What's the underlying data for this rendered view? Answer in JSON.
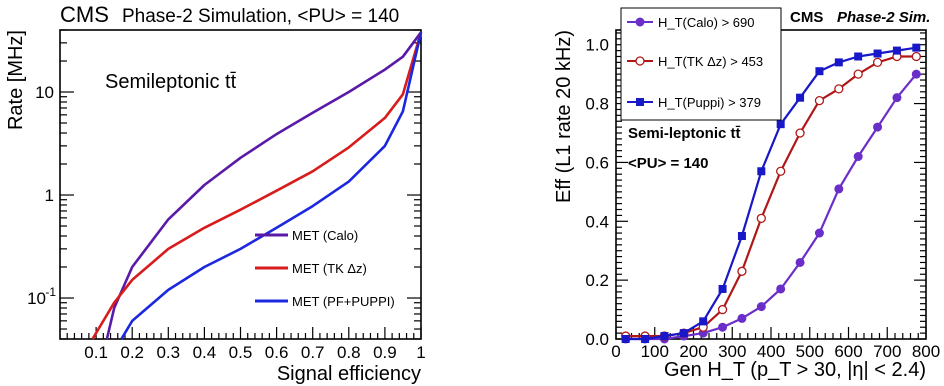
{
  "chart_data": [
    {
      "type": "line",
      "title": "Phase-2 Simulation, <PU> = 140",
      "experiment": "CMS",
      "annotation": "Semileptonic tt̄",
      "xlabel": "Signal efficiency",
      "ylabel": "Rate [MHz]",
      "xlim": [
        0,
        1
      ],
      "ylim": [
        0.04,
        40
      ],
      "yscale": "log",
      "x_ticks": [
        "0.1",
        "0.2",
        "0.3",
        "0.4",
        "0.5",
        "0.6",
        "0.7",
        "0.8",
        "0.9",
        "1"
      ],
      "y_ticks": [
        "10^-1",
        "1",
        "10"
      ],
      "legend_position": "bottom-right",
      "series": [
        {
          "name": "MET (Calo)",
          "color": "#5a1aa8",
          "x": [
            0.13,
            0.15,
            0.2,
            0.3,
            0.4,
            0.5,
            0.6,
            0.7,
            0.8,
            0.9,
            0.95,
            1.0
          ],
          "y": [
            0.04,
            0.08,
            0.2,
            0.58,
            1.25,
            2.3,
            3.9,
            6.3,
            10.0,
            16.5,
            22.0,
            38.0
          ]
        },
        {
          "name": "MET (TK Δz)",
          "color": "#d81c1c",
          "x": [
            0.09,
            0.15,
            0.2,
            0.3,
            0.4,
            0.5,
            0.6,
            0.7,
            0.8,
            0.9,
            0.95,
            1.0
          ],
          "y": [
            0.04,
            0.09,
            0.15,
            0.3,
            0.48,
            0.72,
            1.1,
            1.7,
            2.9,
            5.6,
            9.5,
            38.0
          ]
        },
        {
          "name": "MET (PF+PUPPI)",
          "color": "#1c28e0",
          "x": [
            0.17,
            0.2,
            0.3,
            0.4,
            0.5,
            0.6,
            0.7,
            0.8,
            0.9,
            0.95,
            1.0
          ],
          "y": [
            0.04,
            0.06,
            0.12,
            0.2,
            0.3,
            0.48,
            0.78,
            1.35,
            3.0,
            6.5,
            38.0
          ]
        }
      ]
    },
    {
      "type": "line",
      "title": "Phase-2 Sim.",
      "experiment": "CMS",
      "annotation_lines": [
        "Semi-leptonic tt̄",
        "<PU> = 140"
      ],
      "xlabel": "Gen H_T (p_T > 30, |η| < 2.4)",
      "ylabel": "Eff (L1 rate 20 kHz)",
      "xlim": [
        0,
        800
      ],
      "ylim": [
        0,
        1.05
      ],
      "x_ticks": [
        "0",
        "100",
        "200",
        "300",
        "400",
        "500",
        "600",
        "700",
        "800"
      ],
      "y_ticks": [
        "0.0",
        "0.2",
        "0.4",
        "0.6",
        "0.8",
        "1.0"
      ],
      "legend_position": "top-left",
      "series": [
        {
          "name": "H_T(Calo) > 690",
          "color": "#6a2ec9",
          "marker": "filled-circle",
          "x": [
            25,
            75,
            125,
            175,
            225,
            275,
            325,
            375,
            425,
            475,
            525,
            575,
            625,
            675,
            725,
            775
          ],
          "y": [
            0.0,
            0.0,
            0.0,
            0.01,
            0.02,
            0.04,
            0.07,
            0.11,
            0.17,
            0.26,
            0.36,
            0.51,
            0.62,
            0.72,
            0.82,
            0.9
          ]
        },
        {
          "name": "H_T(TK Δz) > 453",
          "color": "#b01818",
          "marker": "open-circle",
          "x": [
            25,
            75,
            125,
            175,
            225,
            275,
            325,
            375,
            425,
            475,
            525,
            575,
            625,
            675,
            725,
            775
          ],
          "y": [
            0.01,
            0.01,
            0.01,
            0.02,
            0.04,
            0.1,
            0.23,
            0.41,
            0.57,
            0.7,
            0.81,
            0.85,
            0.9,
            0.94,
            0.96,
            0.96
          ]
        },
        {
          "name": "H_T(Puppi) > 379",
          "color": "#1818c8",
          "marker": "filled-square",
          "x": [
            25,
            75,
            125,
            175,
            225,
            275,
            325,
            375,
            425,
            475,
            525,
            575,
            625,
            675,
            725,
            775
          ],
          "y": [
            0.0,
            0.0,
            0.01,
            0.02,
            0.06,
            0.17,
            0.35,
            0.57,
            0.73,
            0.82,
            0.91,
            0.94,
            0.96,
            0.97,
            0.98,
            0.99
          ]
        }
      ]
    }
  ]
}
